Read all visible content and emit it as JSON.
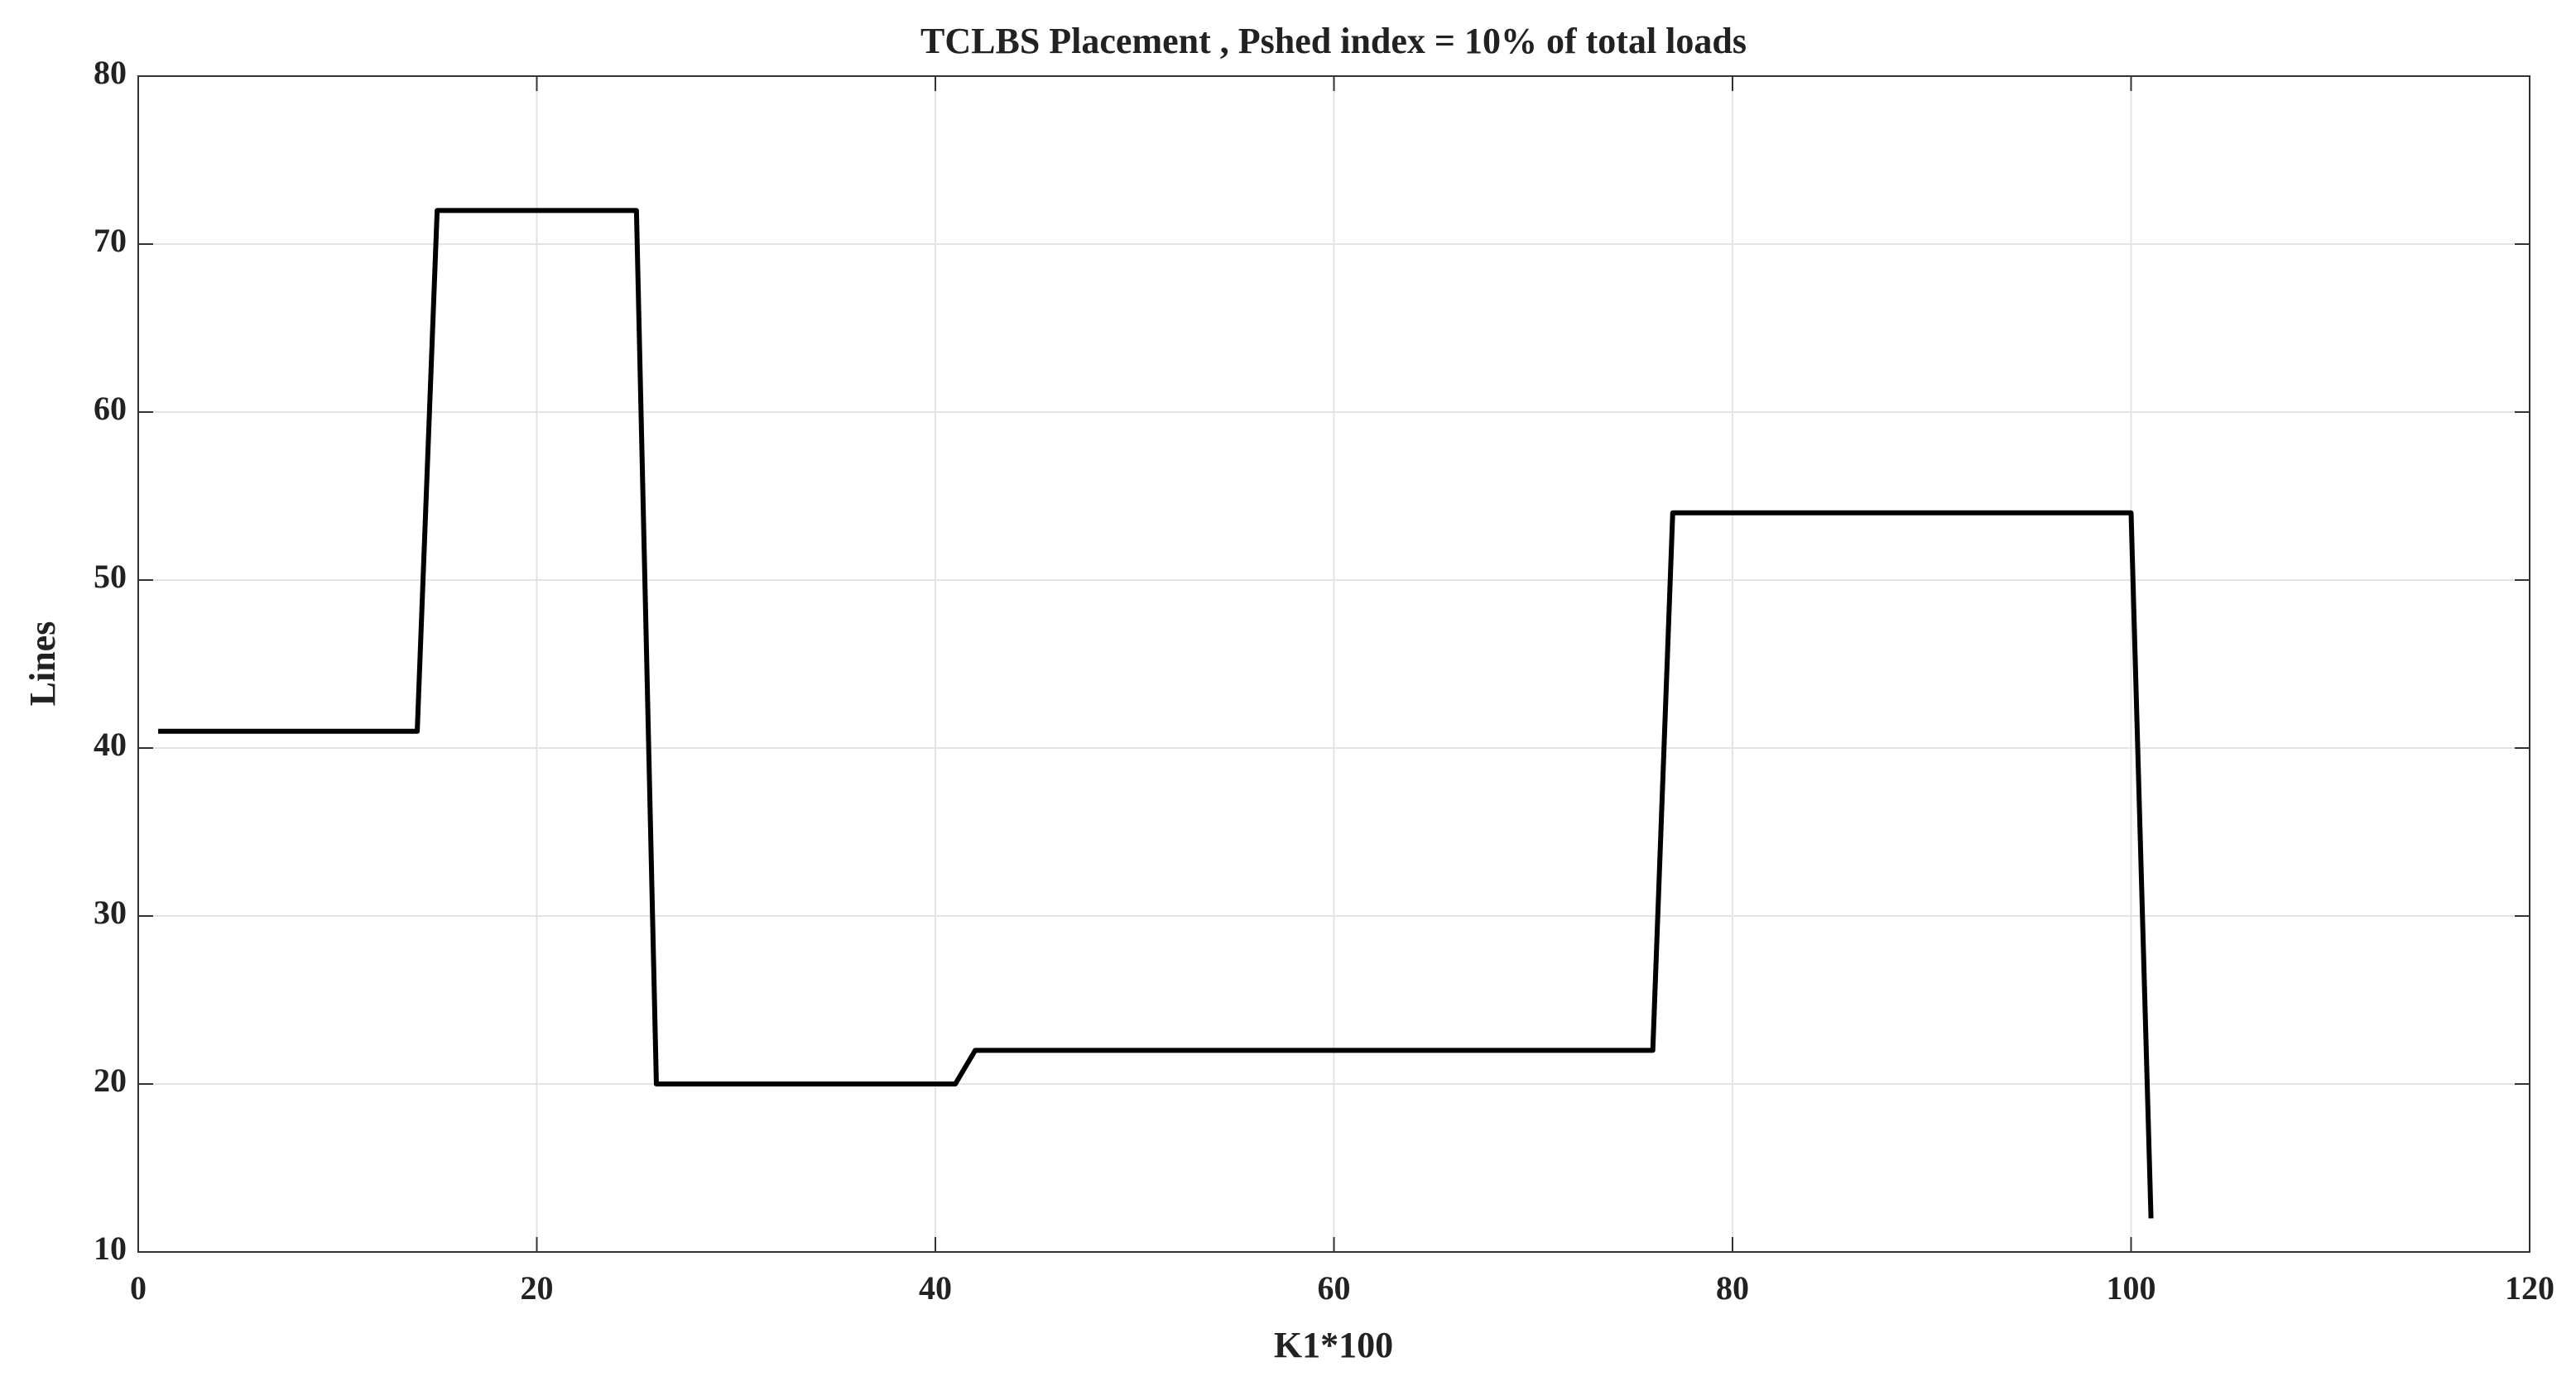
{
  "chart_data": {
    "type": "line",
    "title": "TCLBS Placement , Pshed index = 10% of total loads",
    "x_label": "K1*100",
    "y_label": "Lines",
    "x": [
      1,
      14,
      15,
      25,
      26,
      41,
      42,
      76,
      77,
      100,
      101
    ],
    "series": [
      {
        "color": "#000000",
        "values": [
          41,
          41,
          72,
          72,
          20,
          20,
          22,
          22,
          54,
          54,
          12
        ]
      }
    ],
    "xlim": [
      0,
      120
    ],
    "xticks": [
      0,
      20,
      40,
      60,
      80,
      100,
      120
    ],
    "ylim": [
      10,
      80
    ],
    "yticks": [
      10,
      20,
      30,
      40,
      50,
      60,
      70,
      80
    ],
    "grid": true
  }
}
